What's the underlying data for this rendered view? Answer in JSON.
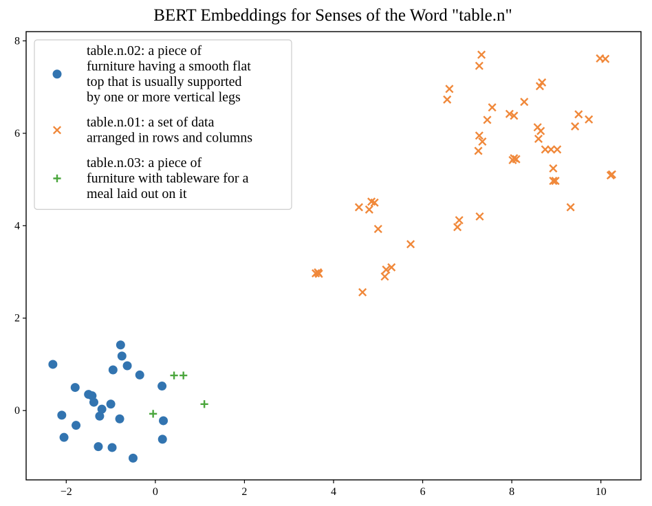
{
  "chart_data": {
    "type": "scatter",
    "title": "BERT Embeddings for Senses of the Word \"table.n\"",
    "xlabel": "",
    "ylabel": "",
    "xlim": [
      -2.9,
      10.9
    ],
    "ylim": [
      -1.5,
      8.2
    ],
    "grid": false,
    "legend_position": "top-left",
    "x_ticks": [
      -2,
      0,
      2,
      4,
      6,
      8,
      10
    ],
    "x_tick_labels": [
      "−2",
      "0",
      "2",
      "4",
      "6",
      "8",
      "10"
    ],
    "y_ticks": [
      0,
      2,
      4,
      6,
      8
    ],
    "y_tick_labels": [
      "0",
      "2",
      "4",
      "6",
      "8"
    ],
    "series": [
      {
        "name": "table.n.02: a piece of furniture having a smooth flat top that is usually supported by one or more vertical legs",
        "legend_lines": [
          "table.n.02: a piece of",
          "furniture having a smooth flat",
          "top that is usually supported",
          "by one or more vertical legs"
        ],
        "marker": "circle",
        "color": "#3274b0",
        "points": [
          [
            -2.3,
            1.0
          ],
          [
            -2.1,
            -0.1
          ],
          [
            -2.05,
            -0.58
          ],
          [
            -1.8,
            0.5
          ],
          [
            -1.78,
            -0.32
          ],
          [
            -1.5,
            0.35
          ],
          [
            -1.42,
            0.32
          ],
          [
            -1.38,
            0.18
          ],
          [
            -1.28,
            -0.78
          ],
          [
            -1.25,
            -0.12
          ],
          [
            -1.2,
            0.03
          ],
          [
            -1.0,
            0.14
          ],
          [
            -0.97,
            -0.8
          ],
          [
            -0.95,
            0.88
          ],
          [
            -0.8,
            -0.18
          ],
          [
            -0.78,
            1.42
          ],
          [
            -0.75,
            1.18
          ],
          [
            -0.63,
            0.97
          ],
          [
            -0.5,
            -1.03
          ],
          [
            -0.35,
            0.77
          ],
          [
            0.15,
            0.53
          ],
          [
            0.18,
            -0.22
          ],
          [
            0.16,
            -0.62
          ]
        ]
      },
      {
        "name": "table.n.01: a set of data arranged in rows and columns",
        "legend_lines": [
          "table.n.01: a set of data",
          "arranged in rows and columns"
        ],
        "marker": "x",
        "color": "#f0883a",
        "points": [
          [
            3.6,
            2.97
          ],
          [
            3.65,
            2.99
          ],
          [
            3.67,
            2.96
          ],
          [
            4.57,
            4.4
          ],
          [
            4.65,
            2.56
          ],
          [
            4.8,
            4.35
          ],
          [
            4.85,
            4.52
          ],
          [
            4.92,
            4.5
          ],
          [
            5.0,
            3.93
          ],
          [
            5.15,
            2.9
          ],
          [
            5.18,
            3.05
          ],
          [
            5.3,
            3.1
          ],
          [
            5.73,
            3.6
          ],
          [
            6.55,
            6.73
          ],
          [
            6.6,
            6.96
          ],
          [
            6.78,
            3.97
          ],
          [
            6.82,
            4.12
          ],
          [
            7.25,
            5.62
          ],
          [
            7.27,
            5.95
          ],
          [
            7.27,
            7.46
          ],
          [
            7.28,
            4.2
          ],
          [
            7.32,
            7.7
          ],
          [
            7.34,
            5.82
          ],
          [
            7.45,
            6.29
          ],
          [
            7.56,
            6.56
          ],
          [
            7.95,
            6.42
          ],
          [
            8.02,
            5.42
          ],
          [
            8.05,
            6.38
          ],
          [
            8.05,
            5.46
          ],
          [
            8.1,
            5.44
          ],
          [
            8.28,
            6.68
          ],
          [
            8.58,
            6.13
          ],
          [
            8.6,
            5.88
          ],
          [
            8.63,
            7.02
          ],
          [
            8.65,
            6.05
          ],
          [
            8.68,
            7.1
          ],
          [
            8.75,
            5.65
          ],
          [
            8.88,
            5.65
          ],
          [
            8.93,
            5.24
          ],
          [
            8.93,
            4.97
          ],
          [
            8.98,
            4.97
          ],
          [
            9.02,
            5.65
          ],
          [
            9.32,
            4.4
          ],
          [
            9.42,
            6.15
          ],
          [
            9.5,
            6.41
          ],
          [
            9.73,
            6.3
          ],
          [
            9.98,
            7.62
          ],
          [
            10.1,
            7.61
          ],
          [
            10.22,
            5.09
          ],
          [
            10.25,
            5.11
          ]
        ]
      },
      {
        "name": "table.n.03: a piece of furniture with tableware for a meal laid out on it",
        "legend_lines": [
          "table.n.03: a piece of",
          "furniture with tableware for a",
          "meal laid out on it"
        ],
        "marker": "plus",
        "color": "#4aa63c",
        "points": [
          [
            -0.05,
            -0.07
          ],
          [
            0.42,
            0.76
          ],
          [
            0.63,
            0.76
          ],
          [
            1.1,
            0.14
          ]
        ]
      }
    ]
  }
}
